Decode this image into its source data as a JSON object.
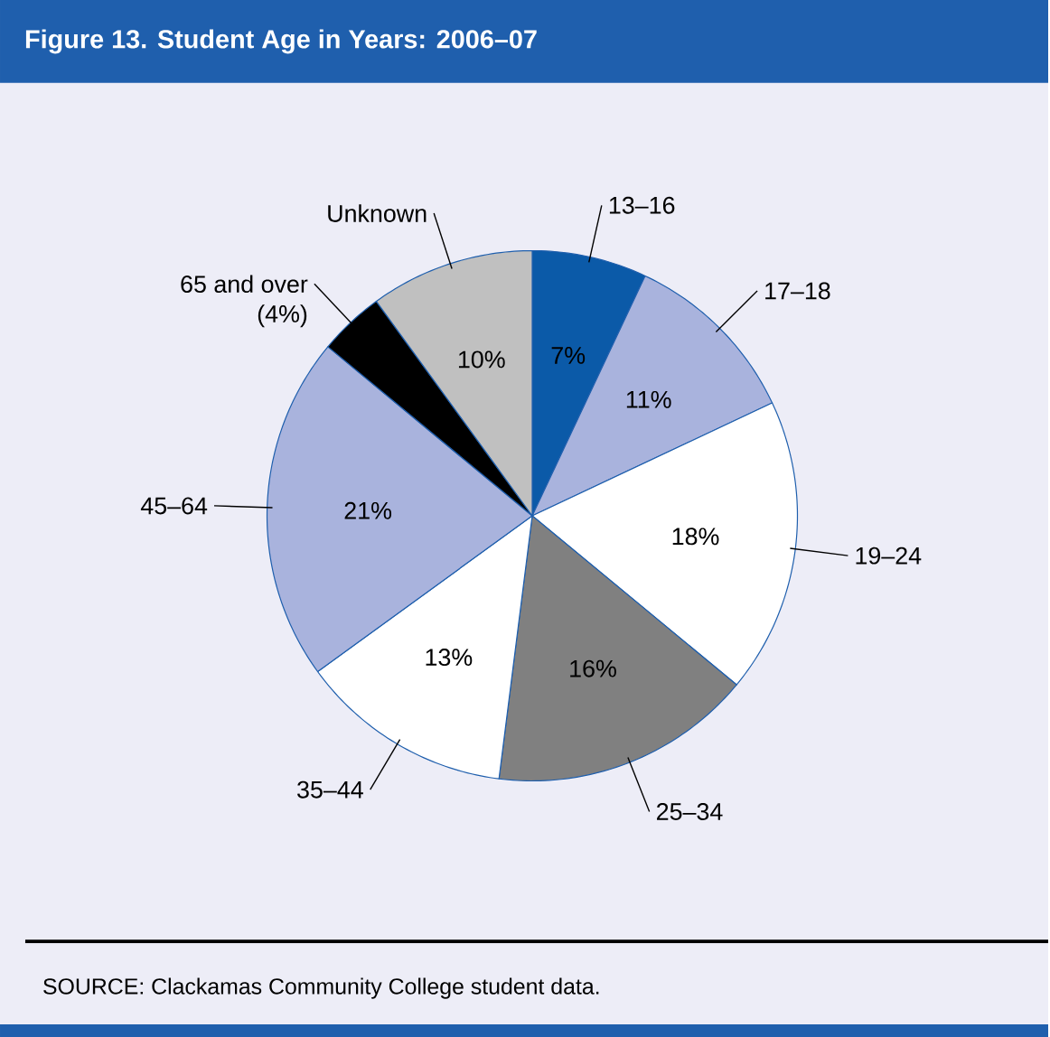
{
  "chart_data": {
    "type": "pie",
    "title": "Figure 13.   Student Age in Years: 2006–07",
    "categories": [
      "13–16",
      "17–18",
      "19–24",
      "25–34",
      "35–44",
      "45–64",
      "65 and over",
      "Unknown"
    ],
    "values": [
      7,
      11,
      18,
      16,
      13,
      21,
      4,
      10
    ],
    "colors": [
      "#0b5aa8",
      "#a9b3dd",
      "#ffffff",
      "#808080",
      "#ffffff",
      "#a9b3dd",
      "#000000",
      "#c0c0c0"
    ],
    "value_labels": [
      "7%",
      "11%",
      "18%",
      "16%",
      "13%",
      "21%",
      "(4%)",
      "10%"
    ],
    "annotations": [
      "SOURCE: Clackamas Community College student data."
    ]
  }
}
